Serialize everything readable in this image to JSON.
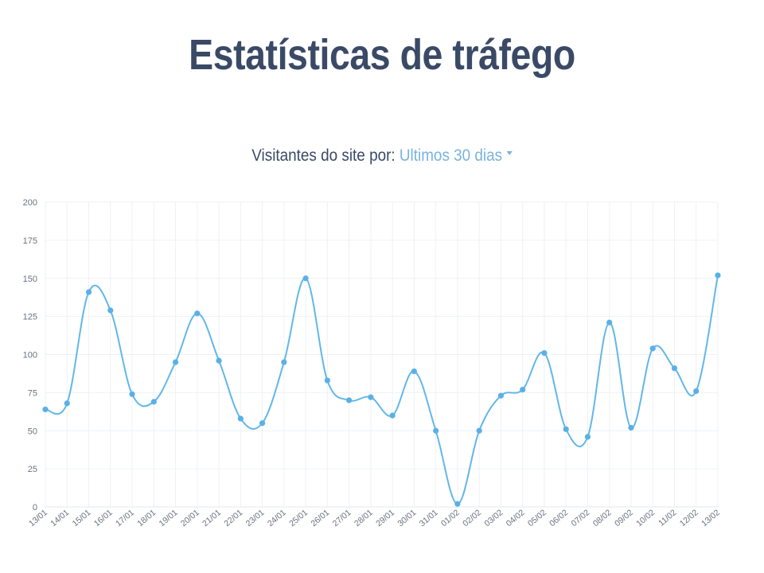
{
  "page": {
    "title": "Estatísticas de tráfego",
    "subtitle_prefix": "Visitantes do site por: ",
    "range_label": "Ultimos 30 dias",
    "caret_icon": "caret-down-icon"
  },
  "colors": {
    "line": "#62b7e8",
    "point": "#5ab0e6",
    "grid": "#eef1f5",
    "title": "#3a4a66",
    "accent": "#7ab3dd"
  },
  "chart_data": {
    "type": "line",
    "title": "",
    "xlabel": "",
    "ylabel": "",
    "ylim": [
      0,
      200
    ],
    "yticks": [
      0,
      25,
      50,
      75,
      100,
      125,
      150,
      175,
      200
    ],
    "grid": true,
    "legend": "none",
    "categories": [
      "13/01",
      "14/01",
      "15/01",
      "16/01",
      "17/01",
      "18/01",
      "19/01",
      "20/01",
      "21/01",
      "22/01",
      "23/01",
      "24/01",
      "25/01",
      "26/01",
      "27/01",
      "28/01",
      "29/01",
      "30/01",
      "31/01",
      "01/02",
      "02/02",
      "03/02",
      "04/02",
      "05/02",
      "06/02",
      "07/02",
      "08/02",
      "09/02",
      "10/02",
      "11/02",
      "12/02",
      "13/02"
    ],
    "series": [
      {
        "values": [
          64,
          68,
          141,
          129,
          74,
          69,
          95,
          127,
          96,
          58,
          55,
          95,
          150,
          83,
          70,
          72,
          60,
          89,
          50,
          2,
          50,
          73,
          77,
          101,
          51,
          46,
          121,
          52,
          104,
          91,
          76,
          152
        ]
      }
    ]
  }
}
